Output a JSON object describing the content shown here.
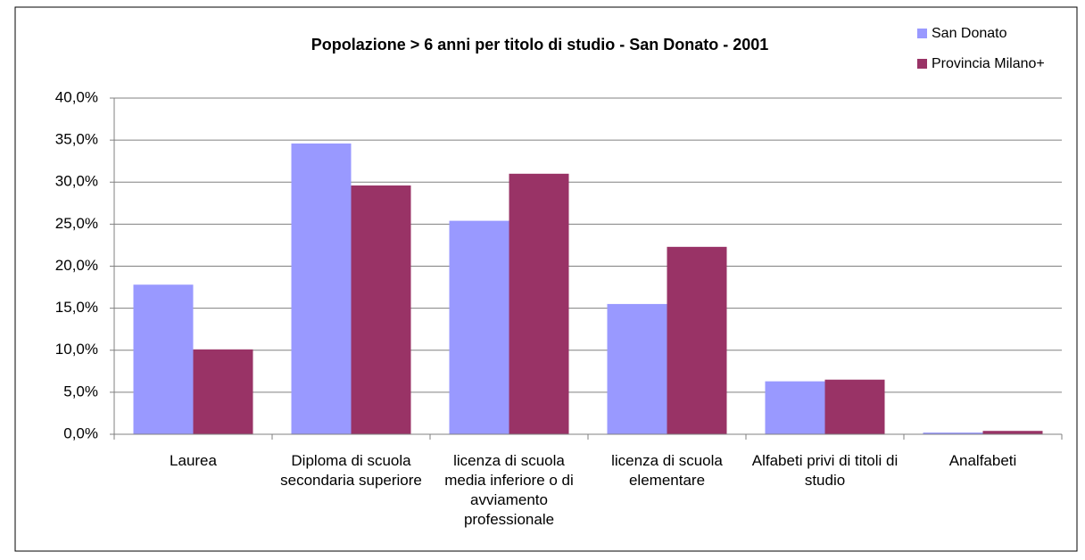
{
  "chart_data": {
    "type": "bar",
    "title": "Popolazione > 6 anni per titolo di studio - San Donato - 2001",
    "categories": [
      "Laurea",
      "Diploma di scuola secondaria superiore",
      "licenza di scuola media inferiore o di avviamento professionale",
      "licenza di scuola elementare",
      "Alfabeti privi di titoli di studio",
      "Analfabeti"
    ],
    "series": [
      {
        "name": "San Donato",
        "color": "#9999ff",
        "values": [
          17.8,
          34.6,
          25.4,
          15.5,
          6.3,
          0.2
        ]
      },
      {
        "name": "Provincia Milano+",
        "color": "#993366",
        "values": [
          10.1,
          29.6,
          31.0,
          22.3,
          6.5,
          0.4
        ]
      }
    ],
    "ylim": [
      0,
      40
    ],
    "yticks": [
      {
        "value": 0,
        "label": "0,0%"
      },
      {
        "value": 5,
        "label": "5,0%"
      },
      {
        "value": 10,
        "label": "10,0%"
      },
      {
        "value": 15,
        "label": "15,0%"
      },
      {
        "value": 20,
        "label": "20,0%"
      },
      {
        "value": 25,
        "label": "25,0%"
      },
      {
        "value": 30,
        "label": "30,0%"
      },
      {
        "value": 35,
        "label": "35,0%"
      },
      {
        "value": 40,
        "label": "40,0%"
      }
    ],
    "grid": true,
    "legend": "top-right"
  }
}
